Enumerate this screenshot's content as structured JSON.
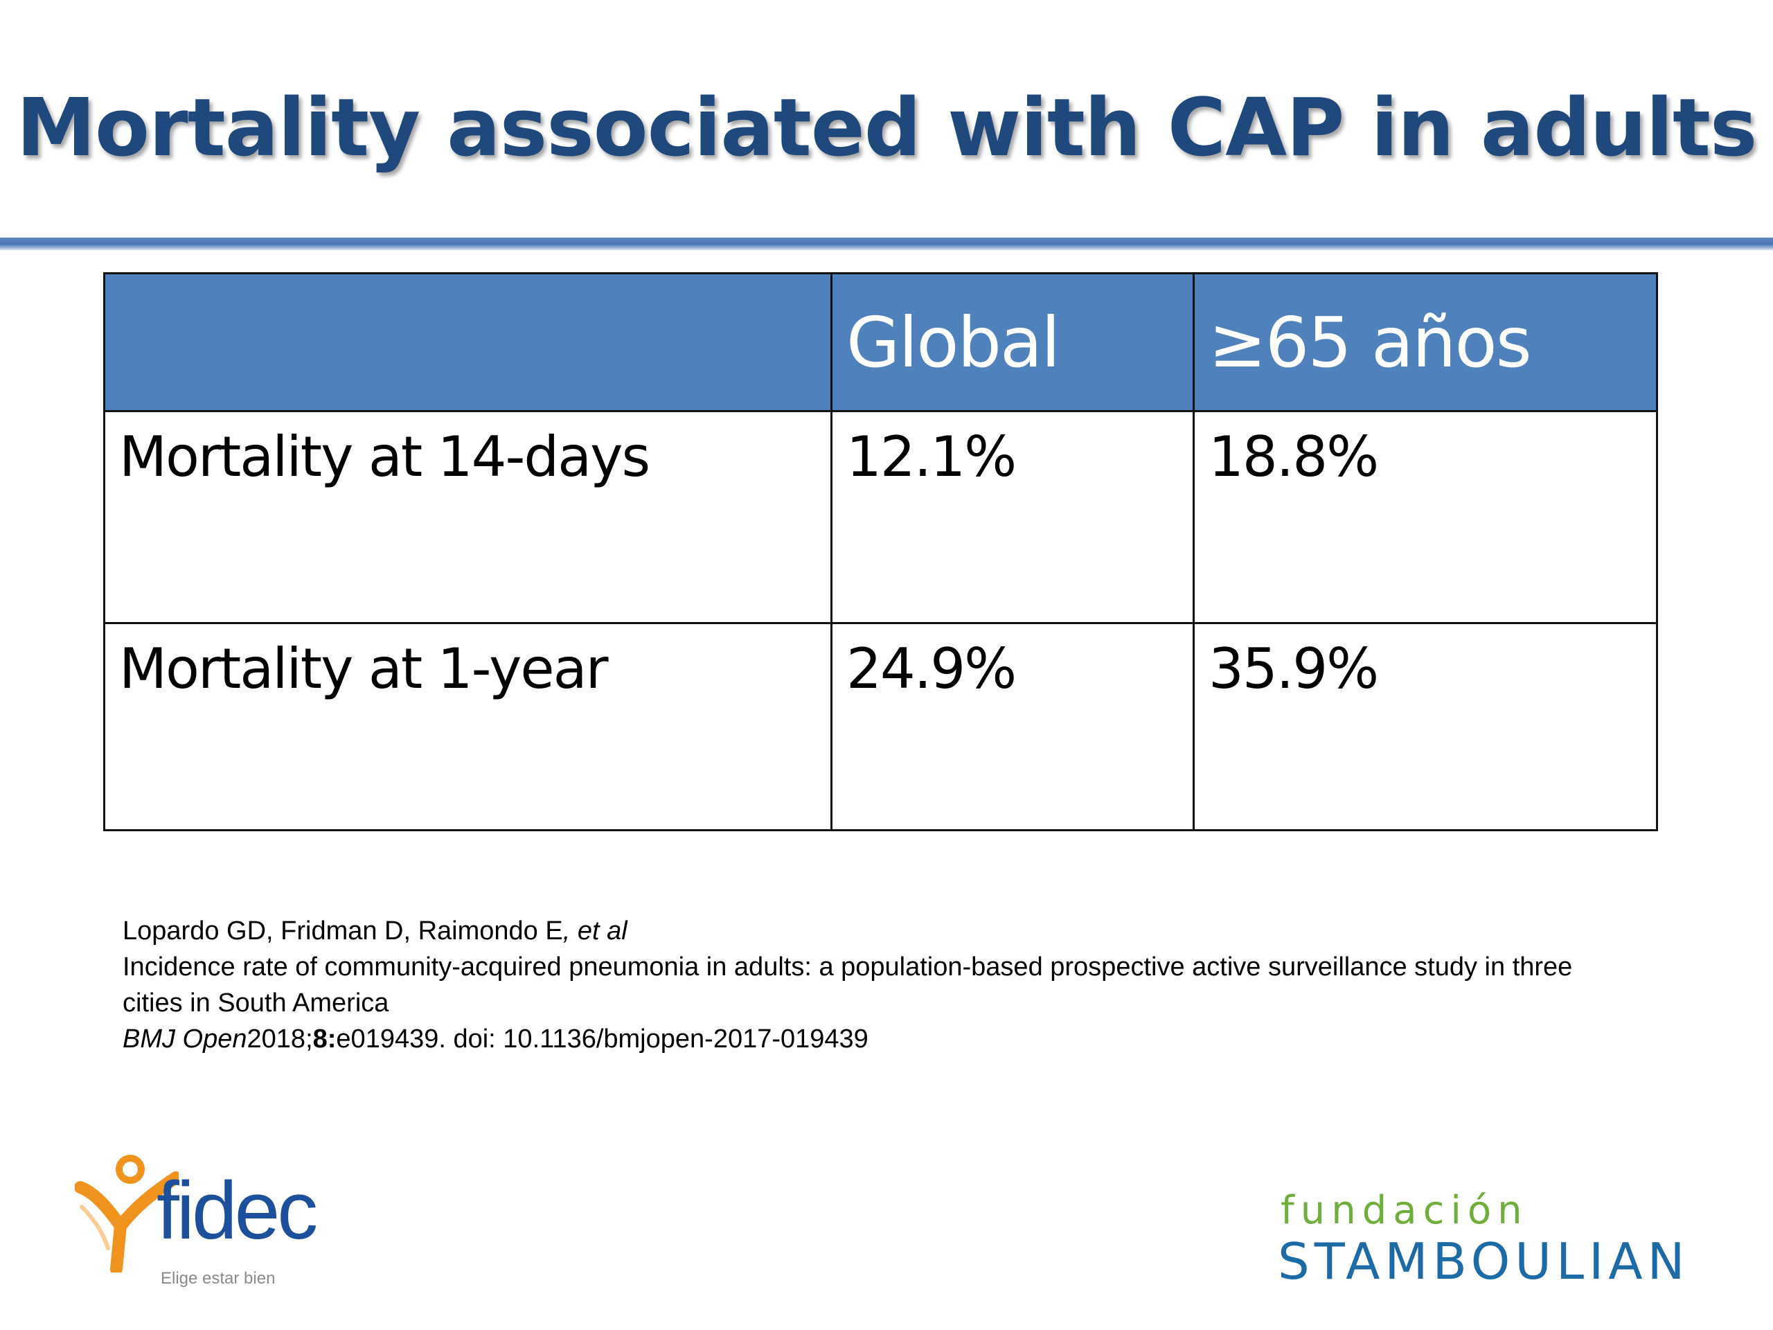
{
  "title": "Mortality associated with CAP in adults",
  "table": {
    "headers": [
      "",
      "Global",
      "≥65 años"
    ],
    "rows": [
      [
        "Mortality at 14-days",
        "12.1%",
        "18.8%"
      ],
      [
        "Mortality at 1-year",
        "24.9%",
        "35.9%"
      ]
    ]
  },
  "citation": {
    "authors": "Lopardo GD, Fridman D, Raimondo E",
    "authors_suffix": ", et al",
    "article_title": "Incidence rate of community-acquired pneumonia in adults: a population-based prospective active surveillance study in three cities in South America",
    "journal": "BMJ Open",
    "year": "2018;",
    "volume": "8:",
    "rest": "e019439. doi: 10.1136/bmjopen-2017-019439"
  },
  "logos": {
    "left": {
      "name": "fidec",
      "tagline": "Elige estar bien",
      "icon": "person-figure-icon",
      "colors": {
        "figure": "#f0921e",
        "text": "#1c4f9c"
      }
    },
    "right": {
      "line1": "fundación",
      "line2": "STAMBOULIAN",
      "colors": {
        "line1": "#6fae3a",
        "line2": "#1c6aa6"
      }
    }
  },
  "colors": {
    "title": "#1f497d",
    "header_fill": "#4f81bd",
    "rule": "#4a74b8"
  }
}
